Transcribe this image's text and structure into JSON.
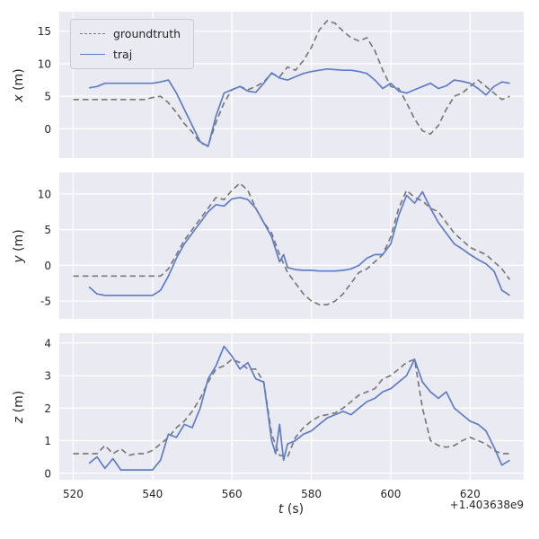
{
  "figure": {
    "xlabel_letter": "t",
    "xlabel_unit": "(s)",
    "offset_text": "+1.403638e9",
    "legend": {
      "location": "upper left",
      "entries": [
        "groundtruth",
        "traj"
      ]
    }
  },
  "style": {
    "axes_bg": "#eaeaf2",
    "grid": "#ffffff",
    "text": "#262626",
    "colors": {
      "groundtruth": "#7a7a7a",
      "traj": "#5f7dc4"
    }
  },
  "chart_data": [
    {
      "type": "line",
      "title": "",
      "ylabel": "x (m)",
      "ylabel_letter": "x",
      "ylabel_unit": "(m)",
      "xlim": [
        516.5,
        633.5
      ],
      "ylim": [
        -4.5,
        18
      ],
      "xticks": [
        520,
        540,
        560,
        580,
        600,
        620
      ],
      "yticks": [
        0,
        5,
        10,
        15
      ],
      "show_xticklabels": false,
      "grid": true,
      "series": [
        {
          "name": "groundtruth",
          "style": "dashed",
          "x": [
            520,
            522,
            524,
            526,
            528,
            530,
            532,
            534,
            536,
            538,
            540,
            542,
            544,
            546,
            548,
            550,
            552,
            554,
            556,
            558,
            560,
            562,
            564,
            566,
            568,
            570,
            572,
            574,
            576,
            578,
            580,
            582,
            584,
            586,
            588,
            590,
            592,
            594,
            596,
            598,
            600,
            602,
            604,
            606,
            608,
            610,
            612,
            614,
            616,
            618,
            620,
            622,
            624,
            626,
            628,
            630
          ],
          "y": [
            4.5,
            4.5,
            4.5,
            4.5,
            4.5,
            4.5,
            4.5,
            4.5,
            4.5,
            4.5,
            4.8,
            5.0,
            4.0,
            2.5,
            0.8,
            -0.5,
            -2.2,
            -2.6,
            1.0,
            4.0,
            6.0,
            6.5,
            6.0,
            6.5,
            7.2,
            8.5,
            8.0,
            9.5,
            9.0,
            10.5,
            12.5,
            15.2,
            16.6,
            16.2,
            15.0,
            14.0,
            13.5,
            14.0,
            12.0,
            9.0,
            6.5,
            6.2,
            4.0,
            1.5,
            -0.3,
            -0.8,
            0.5,
            3.0,
            5.0,
            5.5,
            6.5,
            7.5,
            6.5,
            5.5,
            4.5,
            5.0
          ]
        },
        {
          "name": "traj",
          "style": "solid",
          "x": [
            524,
            526,
            528,
            530,
            532,
            534,
            536,
            538,
            540,
            542,
            544,
            546,
            548,
            550,
            552,
            554,
            556,
            558,
            560,
            562,
            564,
            566,
            568,
            570,
            572,
            574,
            576,
            578,
            580,
            582,
            584,
            586,
            588,
            590,
            592,
            594,
            596,
            598,
            600,
            602,
            604,
            606,
            608,
            610,
            612,
            614,
            616,
            618,
            620,
            622,
            624,
            626,
            628,
            630
          ],
          "y": [
            6.3,
            6.5,
            7.0,
            7.0,
            7.0,
            7.0,
            7.0,
            7.0,
            7.0,
            7.2,
            7.5,
            5.5,
            3.0,
            0.5,
            -2.0,
            -2.7,
            2.0,
            5.5,
            6.0,
            6.5,
            5.8,
            5.6,
            7.0,
            8.6,
            7.8,
            7.5,
            8.0,
            8.5,
            8.8,
            9.0,
            9.2,
            9.1,
            9.0,
            9.0,
            8.8,
            8.5,
            7.5,
            6.2,
            7.0,
            5.8,
            5.5,
            6.0,
            6.5,
            7.0,
            6.2,
            6.6,
            7.5,
            7.3,
            7.0,
            6.2,
            5.2,
            6.5,
            7.2,
            7.0
          ]
        }
      ]
    },
    {
      "type": "line",
      "title": "",
      "ylabel": "y (m)",
      "ylabel_letter": "y",
      "ylabel_unit": "(m)",
      "xlim": [
        516.5,
        633.5
      ],
      "ylim": [
        -7.5,
        13
      ],
      "xticks": [
        520,
        540,
        560,
        580,
        600,
        620
      ],
      "yticks": [
        -5,
        0,
        5,
        10
      ],
      "show_xticklabels": false,
      "grid": true,
      "series": [
        {
          "name": "groundtruth",
          "style": "dashed",
          "x": [
            520,
            522,
            524,
            526,
            528,
            530,
            532,
            534,
            536,
            538,
            540,
            542,
            544,
            546,
            548,
            550,
            552,
            554,
            556,
            558,
            560,
            562,
            564,
            566,
            568,
            570,
            572,
            574,
            576,
            578,
            580,
            582,
            584,
            586,
            588,
            590,
            592,
            594,
            596,
            598,
            600,
            602,
            604,
            606,
            608,
            610,
            612,
            614,
            616,
            618,
            620,
            622,
            624,
            626,
            628,
            630
          ],
          "y": [
            -1.5,
            -1.5,
            -1.5,
            -1.5,
            -1.5,
            -1.5,
            -1.5,
            -1.5,
            -1.5,
            -1.5,
            -1.5,
            -1.5,
            -0.5,
            1.5,
            3.5,
            5.0,
            6.5,
            8.0,
            9.5,
            9.2,
            10.5,
            11.5,
            10.5,
            8.0,
            6.0,
            4.5,
            1.5,
            -1.0,
            -2.5,
            -4.0,
            -5.0,
            -5.5,
            -5.5,
            -5.0,
            -4.0,
            -2.5,
            -1.0,
            -0.5,
            0.5,
            1.5,
            4.0,
            8.0,
            10.5,
            9.5,
            9.0,
            8.0,
            7.5,
            6.0,
            4.5,
            3.5,
            2.5,
            2.0,
            1.5,
            0.5,
            -0.5,
            -2.0
          ]
        },
        {
          "name": "traj",
          "style": "solid",
          "x": [
            524,
            526,
            528,
            530,
            532,
            534,
            536,
            538,
            540,
            542,
            544,
            546,
            548,
            550,
            552,
            554,
            556,
            558,
            560,
            562,
            564,
            566,
            568,
            570,
            572,
            573,
            574,
            576,
            578,
            580,
            582,
            584,
            586,
            588,
            590,
            592,
            594,
            596,
            598,
            600,
            602,
            604,
            606,
            608,
            610,
            612,
            614,
            616,
            618,
            620,
            622,
            624,
            626,
            628,
            630
          ],
          "y": [
            -3.0,
            -4.0,
            -4.2,
            -4.2,
            -4.2,
            -4.2,
            -4.2,
            -4.2,
            -4.2,
            -3.5,
            -1.5,
            1.0,
            3.0,
            4.5,
            6.0,
            7.5,
            8.5,
            8.3,
            9.3,
            9.5,
            9.2,
            8.0,
            6.0,
            4.0,
            0.5,
            1.5,
            -0.3,
            -0.6,
            -0.7,
            -0.7,
            -0.8,
            -0.8,
            -0.8,
            -0.7,
            -0.5,
            0.0,
            1.0,
            1.5,
            1.5,
            3.0,
            7.0,
            9.8,
            8.7,
            10.3,
            8.0,
            6.0,
            4.5,
            3.0,
            2.3,
            1.5,
            0.8,
            0.2,
            -0.8,
            -3.5,
            -4.2
          ]
        }
      ]
    },
    {
      "type": "line",
      "title": "",
      "ylabel": "z (m)",
      "ylabel_letter": "z",
      "ylabel_unit": "(m)",
      "xlim": [
        516.5,
        633.5
      ],
      "ylim": [
        -0.2,
        4.3
      ],
      "xticks": [
        520,
        540,
        560,
        580,
        600,
        620
      ],
      "yticks": [
        0,
        1,
        2,
        3,
        4
      ],
      "show_xticklabels": true,
      "grid": true,
      "series": [
        {
          "name": "groundtruth",
          "style": "dashed",
          "x": [
            520,
            522,
            524,
            526,
            528,
            530,
            532,
            534,
            536,
            538,
            540,
            542,
            544,
            546,
            548,
            550,
            552,
            554,
            556,
            558,
            560,
            562,
            564,
            566,
            568,
            570,
            572,
            574,
            576,
            578,
            580,
            582,
            584,
            586,
            588,
            590,
            592,
            594,
            596,
            598,
            600,
            602,
            604,
            606,
            608,
            610,
            612,
            614,
            616,
            618,
            620,
            622,
            624,
            626,
            628,
            630
          ],
          "y": [
            0.6,
            0.6,
            0.6,
            0.6,
            0.85,
            0.6,
            0.75,
            0.55,
            0.6,
            0.6,
            0.7,
            0.9,
            1.1,
            1.4,
            1.6,
            1.9,
            2.3,
            2.8,
            3.2,
            3.3,
            3.5,
            3.4,
            3.2,
            3.2,
            2.8,
            1.2,
            0.55,
            0.5,
            1.1,
            1.4,
            1.6,
            1.75,
            1.8,
            1.85,
            2.0,
            2.2,
            2.4,
            2.5,
            2.6,
            2.9,
            3.0,
            3.2,
            3.4,
            3.5,
            2.0,
            1.0,
            0.85,
            0.8,
            0.85,
            1.0,
            1.1,
            1.0,
            0.9,
            0.7,
            0.6,
            0.6
          ]
        },
        {
          "name": "traj",
          "style": "solid",
          "x": [
            524,
            526,
            528,
            530,
            532,
            534,
            536,
            538,
            540,
            542,
            544,
            546,
            548,
            550,
            552,
            554,
            556,
            558,
            560,
            562,
            564,
            566,
            568,
            570,
            571,
            572,
            573,
            574,
            576,
            578,
            580,
            582,
            584,
            586,
            588,
            590,
            592,
            594,
            596,
            598,
            600,
            602,
            604,
            606,
            608,
            610,
            612,
            614,
            616,
            618,
            620,
            622,
            624,
            626,
            628,
            630
          ],
          "y": [
            0.3,
            0.5,
            0.15,
            0.45,
            0.1,
            0.1,
            0.1,
            0.1,
            0.1,
            0.4,
            1.2,
            1.1,
            1.5,
            1.4,
            2.0,
            2.9,
            3.3,
            3.9,
            3.6,
            3.2,
            3.4,
            2.9,
            2.8,
            1.0,
            0.6,
            1.5,
            0.4,
            0.9,
            1.0,
            1.2,
            1.3,
            1.5,
            1.7,
            1.8,
            1.9,
            1.8,
            2.0,
            2.2,
            2.3,
            2.5,
            2.6,
            2.8,
            3.0,
            3.5,
            2.8,
            2.5,
            2.3,
            2.5,
            2.0,
            1.8,
            1.6,
            1.5,
            1.3,
            0.8,
            0.25,
            0.4
          ]
        }
      ]
    }
  ]
}
